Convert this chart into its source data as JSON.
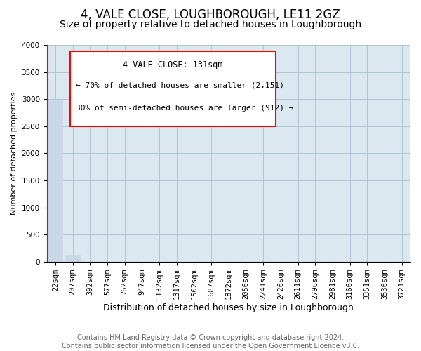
{
  "title1": "4, VALE CLOSE, LOUGHBOROUGH, LE11 2GZ",
  "title2": "Size of property relative to detached houses in Loughborough",
  "xlabel": "Distribution of detached houses by size in Loughborough",
  "ylabel": "Number of detached properties",
  "footer1": "Contains HM Land Registry data © Crown copyright and database right 2024.",
  "footer2": "Contains public sector information licensed under the Open Government Licence v3.0.",
  "annotation_line1": "4 VALE CLOSE: 131sqm",
  "annotation_line2": "← 70% of detached houses are smaller (2,151)",
  "annotation_line3": "30% of semi-detached houses are larger (912) →",
  "bar_labels": [
    "22sqm",
    "207sqm",
    "392sqm",
    "577sqm",
    "762sqm",
    "947sqm",
    "1132sqm",
    "1317sqm",
    "1502sqm",
    "1687sqm",
    "1872sqm",
    "2056sqm",
    "2241sqm",
    "2426sqm",
    "2611sqm",
    "2796sqm",
    "2981sqm",
    "3166sqm",
    "3351sqm",
    "3536sqm",
    "3721sqm"
  ],
  "bar_values": [
    2975,
    130,
    5,
    2,
    2,
    1,
    1,
    0,
    0,
    1,
    0,
    0,
    0,
    0,
    0,
    0,
    0,
    0,
    0,
    0,
    0
  ],
  "bar_color": "#c8d8e8",
  "bar_edge_color": "#c8d8e8",
  "plot_bg_color": "#dce8f0",
  "ylim": [
    0,
    4000
  ],
  "yticks": [
    0,
    500,
    1000,
    1500,
    2000,
    2500,
    3000,
    3500,
    4000
  ],
  "red_line_x": -0.45,
  "title1_fontsize": 12,
  "title2_fontsize": 10,
  "xlabel_fontsize": 9,
  "ylabel_fontsize": 8,
  "tick_fontsize": 7.5,
  "footer_fontsize": 7,
  "grid_color": "#b0c4d4",
  "background_color": "#ffffff"
}
